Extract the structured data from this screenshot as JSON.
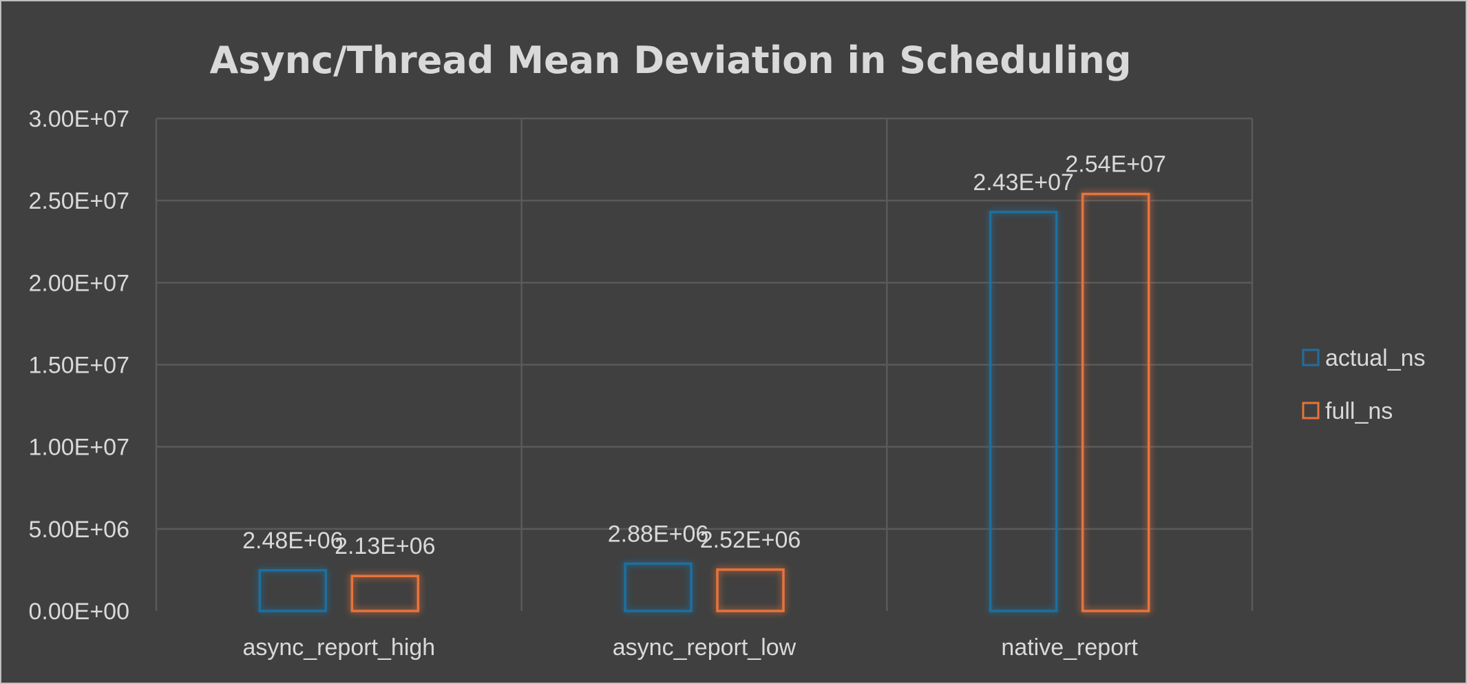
{
  "chart_data": {
    "type": "bar",
    "title": "Async/Thread Mean Deviation in Scheduling",
    "categories": [
      "async_report_high",
      "async_report_low",
      "native_report"
    ],
    "series": [
      {
        "name": "actual_ns",
        "values": [
          2480000,
          2880000,
          24300000
        ],
        "labels": [
          "2.48E+06",
          "2.88E+06",
          "2.43E+07"
        ],
        "color": "#1f6f9f"
      },
      {
        "name": "full_ns",
        "values": [
          2130000,
          2520000,
          25400000
        ],
        "labels": [
          "2.13E+06",
          "2.52E+06",
          "2.54E+07"
        ],
        "color": "#e8733a"
      }
    ],
    "ylim": [
      0,
      30000000
    ],
    "yticks": [
      {
        "value": 0,
        "label": "0.00E+00"
      },
      {
        "value": 5000000,
        "label": "5.00E+06"
      },
      {
        "value": 10000000,
        "label": "1.00E+07"
      },
      {
        "value": 15000000,
        "label": "1.50E+07"
      },
      {
        "value": 20000000,
        "label": "2.00E+07"
      },
      {
        "value": 25000000,
        "label": "2.50E+07"
      },
      {
        "value": 30000000,
        "label": "3.00E+07"
      }
    ],
    "grid": true,
    "legend_position": "right",
    "background": "#404040",
    "gridline_color": "#5a5a5a",
    "text_color": "#d9d9d9"
  }
}
